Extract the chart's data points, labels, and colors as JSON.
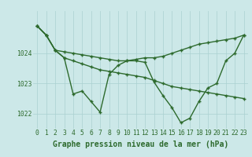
{
  "bg_color": "#cce8e8",
  "line_color": "#2d6a2d",
  "grid_color": "#aad0d0",
  "xlabel_text": "Graphe pression niveau de la mer (hPa)",
  "ylim": [
    1021.5,
    1025.4
  ],
  "xlim": [
    -0.5,
    23.5
  ],
  "yticks": [
    1022,
    1023,
    1024
  ],
  "xticks": [
    0,
    1,
    2,
    3,
    4,
    5,
    6,
    7,
    8,
    9,
    10,
    11,
    12,
    13,
    14,
    15,
    16,
    17,
    18,
    19,
    20,
    21,
    22,
    23
  ],
  "series": [
    [
      1024.9,
      1024.6,
      1024.1,
      1023.85,
      1023.75,
      1023.65,
      1023.55,
      1023.45,
      1023.4,
      1023.35,
      1023.3,
      1023.25,
      1023.2,
      1023.1,
      1023.0,
      1022.9,
      1022.85,
      1022.8,
      1022.75,
      1022.7,
      1022.65,
      1022.6,
      1022.55,
      1022.5
    ],
    [
      1024.9,
      1024.6,
      1024.1,
      1024.05,
      1024.0,
      1023.95,
      1023.9,
      1023.85,
      1023.8,
      1023.75,
      1023.75,
      1023.8,
      1023.85,
      1023.85,
      1023.9,
      1024.0,
      1024.1,
      1024.2,
      1024.3,
      1024.35,
      1024.4,
      1024.45,
      1024.5,
      1024.6
    ],
    [
      1024.9,
      1024.6,
      1024.1,
      1023.85,
      1022.65,
      1022.75,
      1022.4,
      1022.05,
      1023.3,
      1023.6,
      1023.75,
      1023.75,
      1023.7,
      1023.05,
      1022.6,
      1022.2,
      1021.7,
      1021.85,
      1022.4,
      1022.85,
      1023.0,
      1023.75,
      1024.0,
      1024.6
    ]
  ],
  "title_fontsize": 7.0,
  "tick_fontsize": 5.8,
  "line_width": 1.0,
  "marker_size": 3.0
}
